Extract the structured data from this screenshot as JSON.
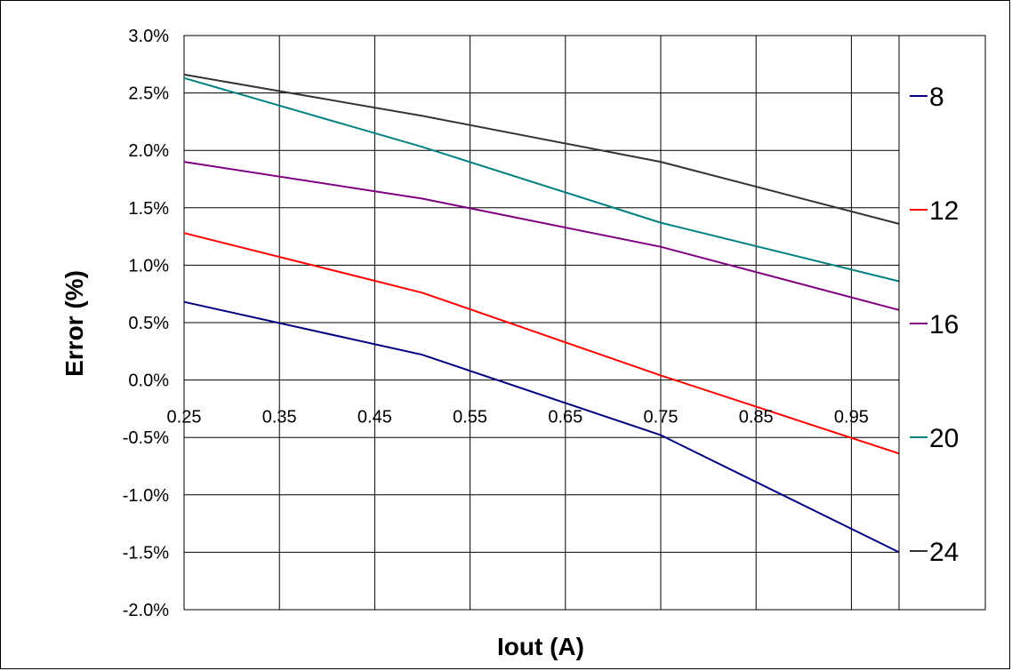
{
  "chart_data": {
    "type": "line",
    "xlabel": "Iout (A)",
    "ylabel": "Error (%)",
    "xlim": [
      0.25,
      1.0
    ],
    "ylim": [
      -2.0,
      3.0
    ],
    "x_ticks": [
      0.25,
      0.35,
      0.45,
      0.55,
      0.65,
      0.75,
      0.85,
      0.95
    ],
    "x_tick_labels": [
      "0.25",
      "0.35",
      "0.45",
      "0.55",
      "0.65",
      "0.75",
      "0.85",
      "0.95"
    ],
    "y_ticks": [
      -2.0,
      -1.5,
      -1.0,
      -0.5,
      0.0,
      0.5,
      1.0,
      1.5,
      2.0,
      2.5,
      3.0
    ],
    "y_tick_labels": [
      "-2.0%",
      "-1.5%",
      "-1.0%",
      "-0.5%",
      "0.0%",
      "0.5%",
      "1.0%",
      "1.5%",
      "2.0%",
      "2.5%",
      "3.0%"
    ],
    "grid": true,
    "legend_position": "right",
    "x": [
      0.25,
      0.5,
      0.75,
      1.0
    ],
    "series": [
      {
        "name": "8",
        "color": "#000080",
        "values": [
          0.68,
          0.22,
          -0.48,
          -1.5
        ]
      },
      {
        "name": "12",
        "color": "#ff0000",
        "values": [
          1.28,
          0.76,
          0.04,
          -0.64
        ]
      },
      {
        "name": "16",
        "color": "#800080",
        "values": [
          1.9,
          1.58,
          1.16,
          0.61
        ]
      },
      {
        "name": "20",
        "color": "#008080",
        "values": [
          2.63,
          2.03,
          1.37,
          0.86
        ]
      },
      {
        "name": "24",
        "color": "#333333",
        "values": [
          2.66,
          2.3,
          1.9,
          1.36
        ]
      }
    ]
  }
}
